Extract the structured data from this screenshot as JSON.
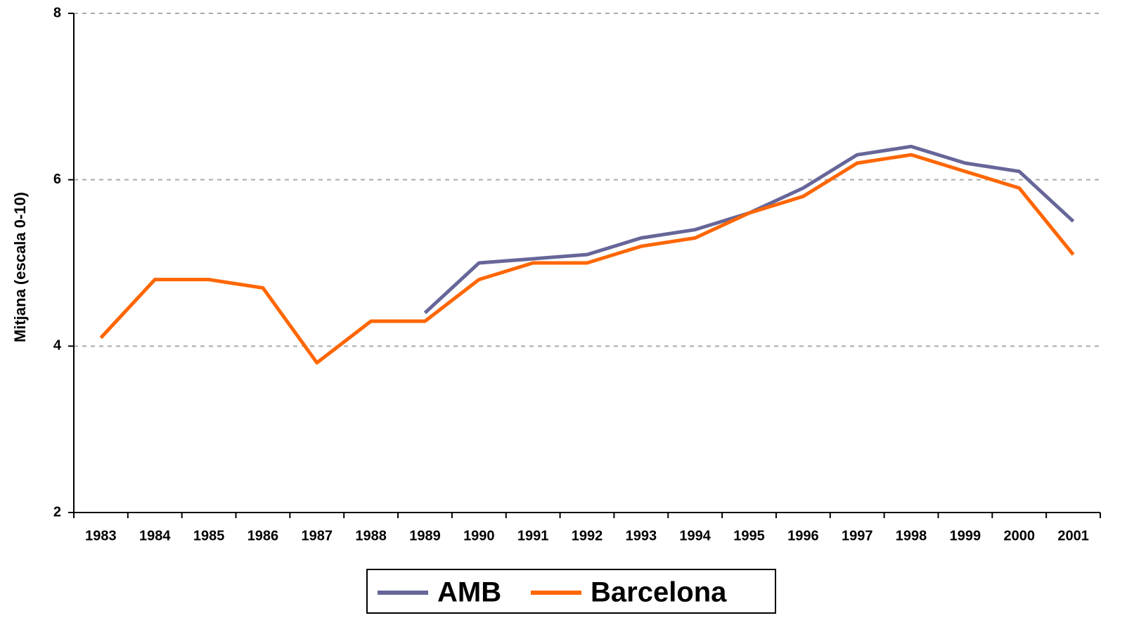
{
  "chart_data": {
    "type": "line",
    "y_label": "Mitjana (escala 0-10)",
    "categories": [
      "1983",
      "1984",
      "1985",
      "1986",
      "1987",
      "1988",
      "1989",
      "1990",
      "1991",
      "1992",
      "1993",
      "1994",
      "1995",
      "1996",
      "1997",
      "1998",
      "1999",
      "2000",
      "2001"
    ],
    "series": [
      {
        "name": "AMB",
        "color": "#666699",
        "values": [
          null,
          null,
          null,
          null,
          null,
          null,
          4.4,
          5.0,
          5.05,
          5.1,
          5.3,
          5.4,
          5.6,
          5.9,
          6.3,
          6.4,
          6.2,
          6.1,
          5.5
        ]
      },
      {
        "name": "Barcelona",
        "color": "#ff6600",
        "values": [
          4.1,
          4.8,
          4.8,
          4.7,
          3.8,
          4.3,
          4.3,
          4.8,
          5.0,
          5.0,
          5.2,
          5.3,
          5.6,
          5.8,
          6.2,
          6.3,
          6.1,
          5.9,
          5.1
        ]
      }
    ],
    "ylim": [
      2,
      8
    ],
    "yticks": [
      2,
      4,
      6,
      8
    ],
    "grid": true,
    "legend": "bottom"
  }
}
